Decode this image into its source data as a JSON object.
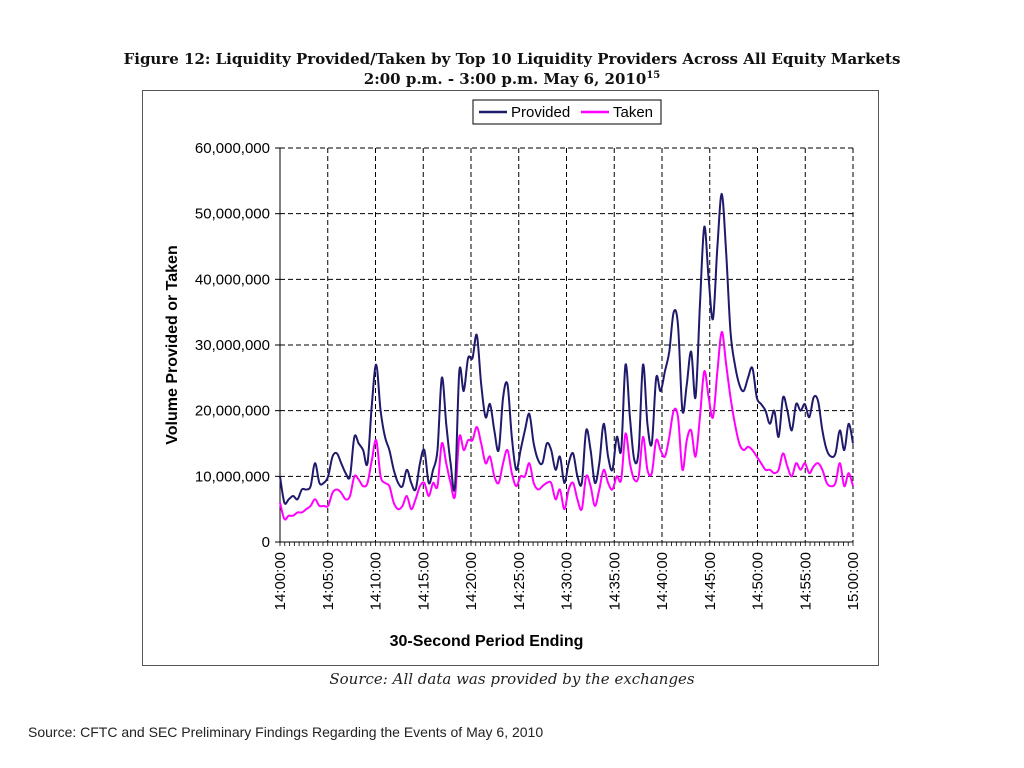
{
  "figure": {
    "title_line1": "Figure 12: Liquidity Provided/Taken by Top 10 Liquidity Providers Across All Equity Markets",
    "title_line2_main": "2:00 p.m. - 3:00 p.m. May 6, 2010",
    "title_line2_sup": "15",
    "source_note": "Source:  All data was provided by the exchanges"
  },
  "footer": {
    "source": "Source: CFTC and SEC Preliminary Findings Regarding the Events of May 6, 2010"
  },
  "colors": {
    "provided": "#1f1a6b",
    "taken": "#ff00ff",
    "grid": "#000000"
  },
  "chart_data": {
    "type": "line",
    "xlabel": "30-Second Period Ending",
    "ylabel": "Volume Provided or Taken",
    "ylim": [
      0,
      60000000
    ],
    "yticks": [
      0,
      10000000,
      20000000,
      30000000,
      40000000,
      50000000,
      60000000
    ],
    "ytick_labels": [
      "0",
      "10,000,000",
      "20,000,000",
      "30,000,000",
      "40,000,000",
      "50,000,000",
      "60,000,000"
    ],
    "xtick_labels": [
      "14:00:00",
      "14:05:00",
      "14:10:00",
      "14:15:00",
      "14:20:00",
      "14:25:00",
      "14:30:00",
      "14:35:00",
      "14:40:00",
      "14:45:00",
      "14:50:00",
      "14:55:00",
      "15:00:00"
    ],
    "grid": true,
    "grid_style": "dashed",
    "legend_position": "top-center",
    "x_period_seconds": 30,
    "series": [
      {
        "name": "Provided",
        "values": [
          10000000,
          6000000,
          6500000,
          7000000,
          6500000,
          8000000,
          8000000,
          8500000,
          12000000,
          9000000,
          9000000,
          10000000,
          13000000,
          13500000,
          12000000,
          10500000,
          10000000,
          16000000,
          15000000,
          14000000,
          12000000,
          21000000,
          27000000,
          20000000,
          16000000,
          14000000,
          11000000,
          9000000,
          8500000,
          11000000,
          9000000,
          8000000,
          12000000,
          14000000,
          9000000,
          11000000,
          14000000,
          25000000,
          18000000,
          12000000,
          8500000,
          26000000,
          23000000,
          28000000,
          28000000,
          31500000,
          24000000,
          19000000,
          21000000,
          17000000,
          14000000,
          22000000,
          24000000,
          16000000,
          11000000,
          14000000,
          17000000,
          19500000,
          15000000,
          12500000,
          12000000,
          15000000,
          14000000,
          11000000,
          13000000,
          9000000,
          12000000,
          13500000,
          10000000,
          9000000,
          17000000,
          14000000,
          9000000,
          12000000,
          18000000,
          13000000,
          11000000,
          16000000,
          14000000,
          27000000,
          19000000,
          12500000,
          14000000,
          27000000,
          18000000,
          15000000,
          25000000,
          23000000,
          26000000,
          29000000,
          35000000,
          33000000,
          20000000,
          24000000,
          29000000,
          22000000,
          36000000,
          48000000,
          40000000,
          34000000,
          45000000,
          53000000,
          44000000,
          32000000,
          27000000,
          24000000,
          23000000,
          25000000,
          26500000,
          22000000,
          21000000,
          20000000,
          18000000,
          20000000,
          16000000,
          22000000,
          20000000,
          17000000,
          21000000,
          20000000,
          21000000,
          19000000,
          22000000,
          21500000,
          17000000,
          14000000,
          13000000,
          13500000,
          17000000,
          14000000,
          18000000,
          15000000
        ]
      },
      {
        "name": "Taken",
        "values": [
          6000000,
          3500000,
          4000000,
          4000000,
          4500000,
          4500000,
          5000000,
          5500000,
          6500000,
          5500000,
          5500000,
          5500000,
          7500000,
          8000000,
          7500000,
          6500000,
          7000000,
          10000000,
          9500000,
          8500000,
          9000000,
          12500000,
          15500000,
          10000000,
          9000000,
          8500000,
          6000000,
          5000000,
          5500000,
          7000000,
          5000000,
          6500000,
          8500000,
          9000000,
          7000000,
          9000000,
          8500000,
          15000000,
          12000000,
          9000000,
          7000000,
          16000000,
          14000000,
          15500000,
          15500000,
          17500000,
          15000000,
          12000000,
          13000000,
          10000000,
          9000000,
          12000000,
          14000000,
          10500000,
          8500000,
          10000000,
          10000000,
          12000000,
          9000000,
          8000000,
          8500000,
          9000000,
          9000000,
          6500000,
          8000000,
          5000000,
          8000000,
          9000000,
          6500000,
          5000000,
          10000000,
          8500000,
          5500000,
          8000000,
          11000000,
          9000000,
          8000000,
          10000000,
          9500000,
          16500000,
          12000000,
          9500000,
          10000000,
          16000000,
          11000000,
          10500000,
          15500000,
          14000000,
          13000000,
          16000000,
          20000000,
          19000000,
          11000000,
          15500000,
          17000000,
          13000000,
          19000000,
          26000000,
          22000000,
          19000000,
          26000000,
          32000000,
          27000000,
          22000000,
          18000000,
          15000000,
          14000000,
          14500000,
          14000000,
          13000000,
          12000000,
          11000000,
          11000000,
          10500000,
          11000000,
          13500000,
          11500000,
          10000000,
          12000000,
          11000000,
          12000000,
          10500000,
          11500000,
          12000000,
          11000000,
          9000000,
          8500000,
          9000000,
          12000000,
          8500000,
          10500000,
          8500000
        ]
      }
    ]
  }
}
